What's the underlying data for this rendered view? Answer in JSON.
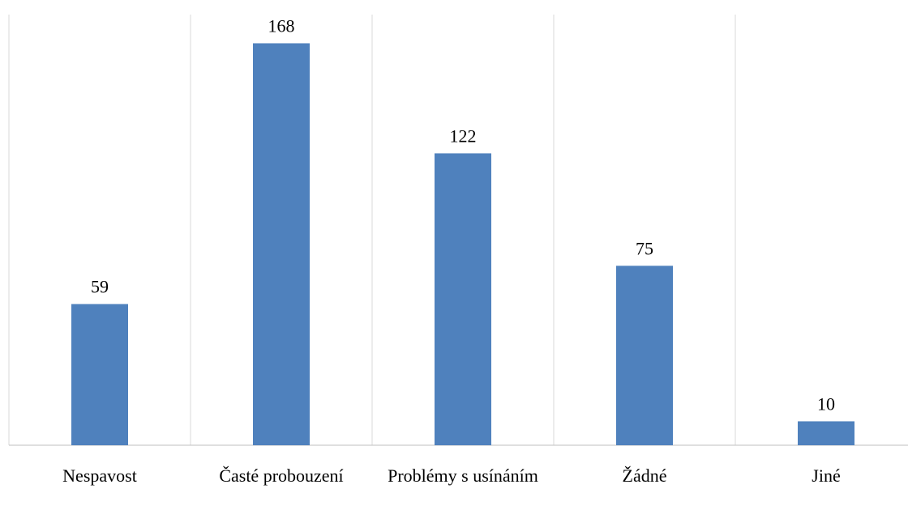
{
  "chart_data": {
    "type": "bar",
    "categories": [
      "Nespavost",
      "Časté probouzení",
      "Problémy s usínáním",
      "Žádné",
      "Jiné"
    ],
    "values": [
      59,
      168,
      122,
      75,
      10
    ],
    "color": "#4f81bd",
    "ylim": [
      0,
      180
    ]
  }
}
